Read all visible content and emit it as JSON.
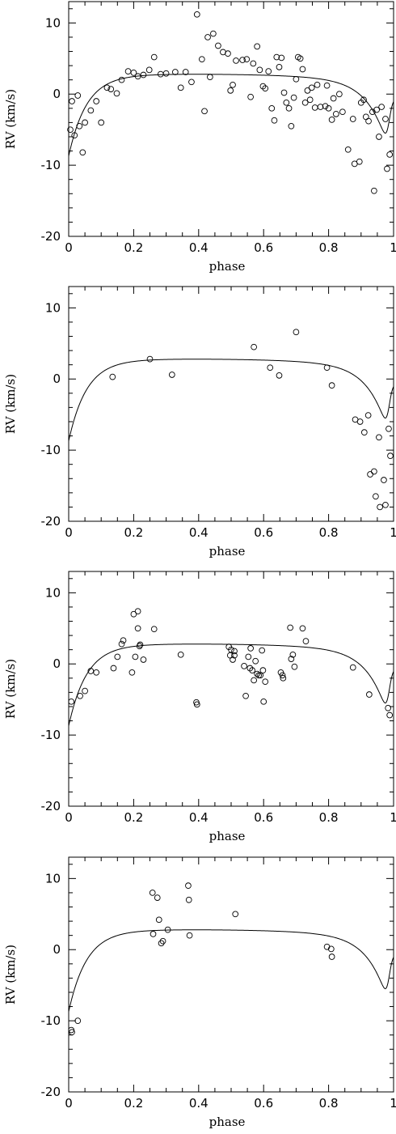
{
  "chart_data": [
    {
      "type": "scatter",
      "panel": 1,
      "xlabel": "phase",
      "ylabel": "RV (km/s)",
      "xlim": [
        0,
        1
      ],
      "ylim": [
        -20,
        13
      ],
      "xticks": [
        "0",
        "0.2",
        "0.4",
        "0.6",
        "0.8",
        "1"
      ],
      "yticks": [
        "10",
        "0",
        "-10",
        "-20"
      ],
      "grid": false,
      "points": [
        [
          0.005,
          -5.0
        ],
        [
          0.01,
          -1.0
        ],
        [
          0.018,
          -5.8
        ],
        [
          0.028,
          -0.2
        ],
        [
          0.033,
          -4.5
        ],
        [
          0.043,
          -8.2
        ],
        [
          0.05,
          -4.0
        ],
        [
          0.068,
          -2.3
        ],
        [
          0.085,
          -1.0
        ],
        [
          0.1,
          -4.0
        ],
        [
          0.118,
          0.9
        ],
        [
          0.13,
          0.7
        ],
        [
          0.148,
          0.1
        ],
        [
          0.163,
          2.0
        ],
        [
          0.183,
          3.2
        ],
        [
          0.2,
          3.0
        ],
        [
          0.213,
          2.5
        ],
        [
          0.23,
          2.7
        ],
        [
          0.248,
          3.4
        ],
        [
          0.263,
          5.2
        ],
        [
          0.283,
          2.8
        ],
        [
          0.3,
          2.9
        ],
        [
          0.328,
          3.1
        ],
        [
          0.345,
          0.9
        ],
        [
          0.36,
          3.1
        ],
        [
          0.378,
          1.7
        ],
        [
          0.395,
          11.2
        ],
        [
          0.41,
          4.9
        ],
        [
          0.418,
          -2.4
        ],
        [
          0.428,
          8.0
        ],
        [
          0.435,
          2.4
        ],
        [
          0.445,
          8.5
        ],
        [
          0.46,
          6.8
        ],
        [
          0.475,
          5.9
        ],
        [
          0.49,
          5.7
        ],
        [
          0.498,
          0.5
        ],
        [
          0.505,
          1.3
        ],
        [
          0.515,
          4.7
        ],
        [
          0.535,
          4.8
        ],
        [
          0.548,
          4.9
        ],
        [
          0.56,
          -0.4
        ],
        [
          0.568,
          4.3
        ],
        [
          0.58,
          6.7
        ],
        [
          0.588,
          3.4
        ],
        [
          0.598,
          1.1
        ],
        [
          0.605,
          0.8
        ],
        [
          0.615,
          3.2
        ],
        [
          0.625,
          -2.0
        ],
        [
          0.633,
          -3.7
        ],
        [
          0.64,
          5.2
        ],
        [
          0.648,
          3.8
        ],
        [
          0.655,
          5.1
        ],
        [
          0.663,
          0.2
        ],
        [
          0.67,
          -1.2
        ],
        [
          0.678,
          -2.0
        ],
        [
          0.685,
          -4.5
        ],
        [
          0.693,
          -0.5
        ],
        [
          0.7,
          2.1
        ],
        [
          0.706,
          5.2
        ],
        [
          0.713,
          5.0
        ],
        [
          0.72,
          3.5
        ],
        [
          0.728,
          -1.2
        ],
        [
          0.735,
          0.5
        ],
        [
          0.743,
          -0.8
        ],
        [
          0.748,
          0.9
        ],
        [
          0.758,
          -1.9
        ],
        [
          0.765,
          1.3
        ],
        [
          0.775,
          -1.8
        ],
        [
          0.79,
          -1.7
        ],
        [
          0.795,
          1.2
        ],
        [
          0.8,
          -2.0
        ],
        [
          0.81,
          -3.6
        ],
        [
          0.815,
          -0.6
        ],
        [
          0.823,
          -2.8
        ],
        [
          0.833,
          0.0
        ],
        [
          0.843,
          -2.5
        ],
        [
          0.86,
          -7.8
        ],
        [
          0.875,
          -3.5
        ],
        [
          0.88,
          -9.8
        ],
        [
          0.895,
          -9.5
        ],
        [
          0.9,
          -1.2
        ],
        [
          0.908,
          -0.8
        ],
        [
          0.915,
          -3.2
        ],
        [
          0.923,
          -3.8
        ],
        [
          0.935,
          -2.5
        ],
        [
          0.94,
          -13.6
        ],
        [
          0.948,
          -2.2
        ],
        [
          0.955,
          -6.0
        ],
        [
          0.963,
          -1.8
        ],
        [
          0.975,
          -3.5
        ],
        [
          0.98,
          -10.5
        ],
        [
          0.988,
          -8.5
        ]
      ]
    },
    {
      "type": "scatter",
      "panel": 2,
      "xlabel": "phase",
      "ylabel": "RV (km/s)",
      "xlim": [
        0,
        1
      ],
      "ylim": [
        -20,
        13
      ],
      "xticks": [
        "0",
        "0.2",
        "0.4",
        "0.6",
        "0.8",
        "1"
      ],
      "yticks": [
        "10",
        "0",
        "-10",
        "-20"
      ],
      "grid": false,
      "points": [
        [
          0.135,
          0.3
        ],
        [
          0.25,
          2.8
        ],
        [
          0.318,
          0.6
        ],
        [
          0.57,
          4.5
        ],
        [
          0.62,
          1.6
        ],
        [
          0.648,
          0.5
        ],
        [
          0.7,
          6.6
        ],
        [
          0.795,
          1.6
        ],
        [
          0.81,
          -0.9
        ],
        [
          0.882,
          -5.7
        ],
        [
          0.897,
          -6.0
        ],
        [
          0.91,
          -7.5
        ],
        [
          0.922,
          -5.1
        ],
        [
          0.928,
          -13.4
        ],
        [
          0.94,
          -13.0
        ],
        [
          0.945,
          -16.5
        ],
        [
          0.955,
          -8.2
        ],
        [
          0.958,
          -18.0
        ],
        [
          0.97,
          -14.2
        ],
        [
          0.975,
          -17.7
        ],
        [
          0.985,
          -7.0
        ],
        [
          0.99,
          -10.8
        ]
      ]
    },
    {
      "type": "scatter",
      "panel": 3,
      "xlabel": "phase",
      "ylabel": "RV (km/s)",
      "xlim": [
        0,
        1
      ],
      "ylim": [
        -20,
        13
      ],
      "xticks": [
        "0",
        "0.2",
        "0.4",
        "0.6",
        "0.8",
        "1"
      ],
      "yticks": [
        "10",
        "0",
        "-10",
        "-20"
      ],
      "grid": false,
      "points": [
        [
          0.008,
          -5.3
        ],
        [
          0.035,
          -4.5
        ],
        [
          0.05,
          -3.8
        ],
        [
          0.068,
          -1.0
        ],
        [
          0.085,
          -1.2
        ],
        [
          0.138,
          -0.6
        ],
        [
          0.15,
          1.0
        ],
        [
          0.163,
          2.8
        ],
        [
          0.168,
          3.3
        ],
        [
          0.195,
          -1.2
        ],
        [
          0.2,
          7.0
        ],
        [
          0.205,
          1.0
        ],
        [
          0.213,
          7.4
        ],
        [
          0.213,
          5.0
        ],
        [
          0.218,
          2.5
        ],
        [
          0.22,
          2.7
        ],
        [
          0.23,
          0.6
        ],
        [
          0.263,
          4.9
        ],
        [
          0.345,
          1.3
        ],
        [
          0.393,
          -5.4
        ],
        [
          0.395,
          -5.7
        ],
        [
          0.493,
          2.4
        ],
        [
          0.497,
          1.2
        ],
        [
          0.5,
          2.0
        ],
        [
          0.505,
          0.6
        ],
        [
          0.51,
          1.8
        ],
        [
          0.51,
          1.2
        ],
        [
          0.54,
          -0.3
        ],
        [
          0.545,
          -4.5
        ],
        [
          0.553,
          1.0
        ],
        [
          0.558,
          -0.6
        ],
        [
          0.56,
          2.2
        ],
        [
          0.565,
          -0.9
        ],
        [
          0.57,
          -2.3
        ],
        [
          0.575,
          0.4
        ],
        [
          0.58,
          -1.4
        ],
        [
          0.585,
          -1.6
        ],
        [
          0.59,
          -1.6
        ],
        [
          0.595,
          1.9
        ],
        [
          0.598,
          -0.9
        ],
        [
          0.6,
          -5.3
        ],
        [
          0.605,
          -2.5
        ],
        [
          0.653,
          -1.2
        ],
        [
          0.658,
          -1.6
        ],
        [
          0.66,
          -2.0
        ],
        [
          0.682,
          5.1
        ],
        [
          0.685,
          0.7
        ],
        [
          0.69,
          1.3
        ],
        [
          0.695,
          -0.4
        ],
        [
          0.72,
          5.0
        ],
        [
          0.73,
          3.2
        ],
        [
          0.875,
          -0.5
        ],
        [
          0.925,
          -4.3
        ],
        [
          0.983,
          -6.2
        ],
        [
          0.988,
          -7.2
        ]
      ]
    },
    {
      "type": "scatter",
      "panel": 4,
      "xlabel": "phase",
      "ylabel": "RV (km/s)",
      "xlim": [
        0,
        1
      ],
      "ylim": [
        -20,
        13
      ],
      "xticks": [
        "0",
        "0.2",
        "0.4",
        "0.6",
        "0.8",
        "1"
      ],
      "yticks": [
        "10",
        "0",
        "-10",
        "-20"
      ],
      "grid": false,
      "points": [
        [
          0.008,
          -11.3
        ],
        [
          0.01,
          -11.6
        ],
        [
          0.028,
          -10.0
        ],
        [
          0.258,
          8.0
        ],
        [
          0.26,
          2.2
        ],
        [
          0.273,
          7.3
        ],
        [
          0.278,
          4.2
        ],
        [
          0.285,
          0.9
        ],
        [
          0.29,
          1.2
        ],
        [
          0.305,
          2.8
        ],
        [
          0.368,
          9.0
        ],
        [
          0.37,
          7.0
        ],
        [
          0.372,
          2.0
        ],
        [
          0.513,
          5.0
        ],
        [
          0.795,
          0.4
        ],
        [
          0.808,
          0.1
        ],
        [
          0.81,
          -1.0
        ]
      ]
    }
  ]
}
